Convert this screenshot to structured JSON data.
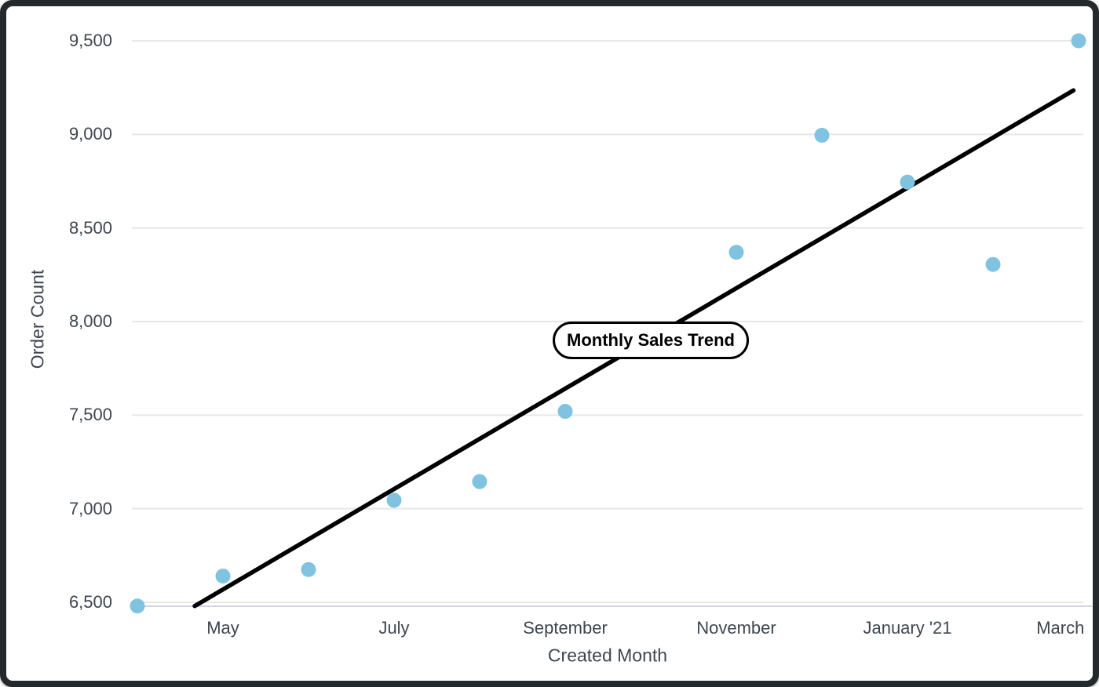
{
  "window": {
    "border_color": "#23292d",
    "background": "#ffffff"
  },
  "chart_data": {
    "type": "scatter",
    "title": "Monthly Sales Trend",
    "xlabel": "Created Month",
    "ylabel": "Order Count",
    "legend": "none",
    "grid": "horizontal",
    "x_ticks": [
      {
        "label": "May",
        "month_index": 1
      },
      {
        "label": "July",
        "month_index": 3
      },
      {
        "label": "September",
        "month_index": 5
      },
      {
        "label": "November",
        "month_index": 7
      },
      {
        "label": "January '21",
        "month_index": 9
      },
      {
        "label": "March",
        "month_index": 11
      }
    ],
    "y_ticks": [
      {
        "label": "6,500",
        "value": 6500
      },
      {
        "label": "7,000",
        "value": 7000
      },
      {
        "label": "7,500",
        "value": 7500
      },
      {
        "label": "8,000",
        "value": 8000
      },
      {
        "label": "8,500",
        "value": 8500
      },
      {
        "label": "9,000",
        "value": 9000
      },
      {
        "label": "9,500",
        "value": 9500
      }
    ],
    "ylim": [
      6450,
      9560
    ],
    "points": [
      {
        "month": "Apr '20",
        "month_index": 0,
        "order_count": 6480
      },
      {
        "month": "May",
        "month_index": 1,
        "order_count": 6640
      },
      {
        "month": "Jun",
        "month_index": 2,
        "order_count": 6675
      },
      {
        "month": "Jul",
        "month_index": 3,
        "order_count": 7045
      },
      {
        "month": "Aug",
        "month_index": 4,
        "order_count": 7145
      },
      {
        "month": "Sep",
        "month_index": 5,
        "order_count": 7520
      },
      {
        "month": "Nov",
        "month_index": 7,
        "order_count": 8370
      },
      {
        "month": "Dec",
        "month_index": 8,
        "order_count": 8995
      },
      {
        "month": "Jan '21",
        "month_index": 9,
        "order_count": 8745
      },
      {
        "month": "Feb",
        "month_index": 10,
        "order_count": 8305
      },
      {
        "month": "Mar",
        "month_index": 11,
        "order_count": 9500
      }
    ],
    "trend_line": {
      "start_month": 0.67,
      "start_value": 6480,
      "end_month": 10.94,
      "end_value": 9235
    },
    "title_position": {
      "month": 6.0,
      "value": 7900
    },
    "colors": {
      "point": "#7fc3e0",
      "trend_line": "#000000",
      "gridline": "#e7e7e7",
      "axis_line": "#ccd6eb",
      "label_text": "#3d4650",
      "title_text": "#000000"
    }
  }
}
